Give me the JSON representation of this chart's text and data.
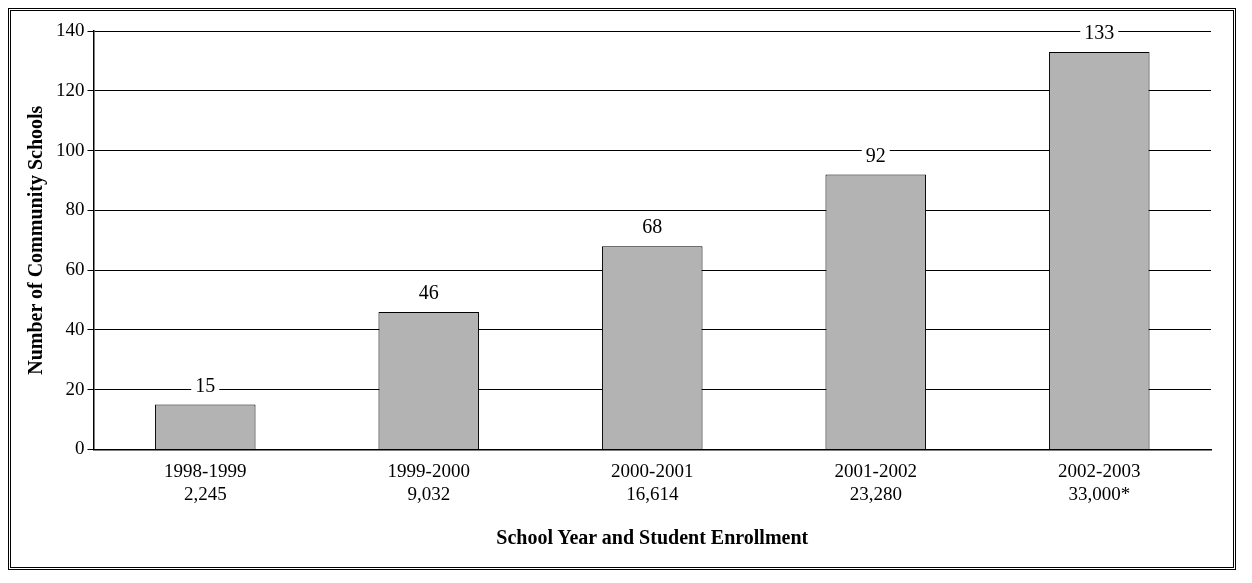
{
  "chart_data": {
    "type": "bar",
    "xlabel": "School Year and Student Enrollment",
    "ylabel": "Number of Community Schools",
    "categories": [
      "1998-1999\n2,245",
      "1999-2000\n9,032",
      "2000-2001\n16,614",
      "2001-2002\n23,280",
      "2002-2003\n33,000*"
    ],
    "values": [
      15,
      46,
      68,
      92,
      133
    ],
    "color": "#b3b3b3",
    "ylim": [
      0,
      140
    ],
    "yticks": [
      0,
      20,
      40,
      60,
      80,
      100,
      120,
      140
    ],
    "grid": "y",
    "data_labels": true,
    "legend": false
  }
}
